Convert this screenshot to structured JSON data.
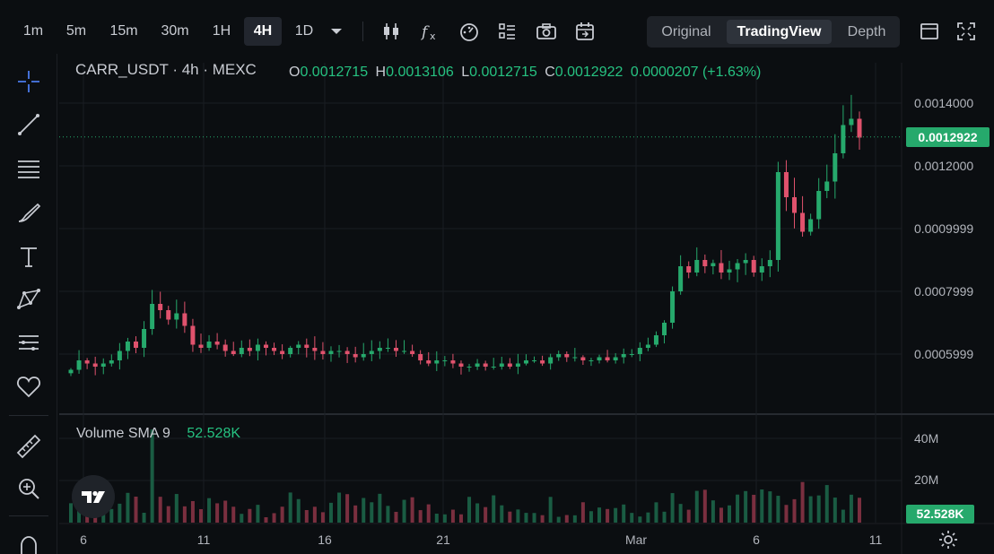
{
  "toolbar": {
    "timeframes": [
      "1m",
      "5m",
      "15m",
      "30m",
      "1H",
      "4H",
      "1D"
    ],
    "active_timeframe": "4H",
    "tool_icons": [
      "candlestick-icon",
      "function-icon",
      "gauge-icon",
      "template-icon",
      "camera-icon",
      "calendar-icon"
    ],
    "views": [
      "Original",
      "TradingView",
      "Depth"
    ],
    "active_view": "TradingView",
    "right_icons": [
      "layout-icon",
      "fullscreen-icon"
    ]
  },
  "sidebar": {
    "icons": [
      "crosshair-icon",
      "trend-line-icon",
      "horizontal-lines-icon",
      "brush-icon",
      "text-icon",
      "pattern-icon",
      "fib-icon",
      "heart-icon",
      "ruler-icon",
      "zoom-icon",
      "magnet-icon"
    ]
  },
  "legend": {
    "symbol": "CARR_USDT · 4h · MEXC",
    "o_label": "O",
    "o_value": "0.0012715",
    "h_label": "H",
    "h_value": "0.0013106",
    "l_label": "L",
    "l_value": "0.0012715",
    "c_label": "C",
    "c_value": "0.0012922",
    "change": "0.0000207 (+1.63%)"
  },
  "volume": {
    "name": "Volume SMA 9",
    "value": "52.528K",
    "axis_labels": [
      "40M",
      "20M"
    ],
    "tag": "52.528K"
  },
  "price_axis": {
    "labels": [
      "0.0014000",
      "0.0012000",
      "0.0009999",
      "0.0007999",
      "0.0005999"
    ],
    "last_price": "0.0012922"
  },
  "date_axis": [
    "6",
    "11",
    "16",
    "21",
    "Mar",
    "6",
    "11"
  ],
  "colors": {
    "up": "#26a96c",
    "down": "#e0526d",
    "background": "#0b0e11"
  },
  "chart_data": {
    "type": "candlestick",
    "interval": "4h",
    "ylim": [
      0.00052,
      0.00147
    ],
    "close_series_approx": [
      0.00055,
      0.00058,
      0.00057,
      0.00056,
      0.00057,
      0.00058,
      0.00061,
      0.00064,
      0.00062,
      0.00068,
      0.00076,
      0.00074,
      0.00071,
      0.00073,
      0.00069,
      0.00063,
      0.00062,
      0.00064,
      0.00063,
      0.00061,
      0.0006,
      0.00062,
      0.00061,
      0.00063,
      0.00062,
      0.00061,
      0.0006,
      0.00062,
      0.00063,
      0.00062,
      0.00061,
      0.0006,
      0.00061,
      0.00061,
      0.0006,
      0.00059,
      0.0006,
      0.00061,
      0.00062,
      0.00062,
      0.00061,
      0.00061,
      0.0006,
      0.00058,
      0.00057,
      0.00058,
      0.00058,
      0.00057,
      0.00056,
      0.00056,
      0.00057,
      0.00056,
      0.00056,
      0.00057,
      0.00056,
      0.00057,
      0.00058,
      0.00058,
      0.00057,
      0.00059,
      0.0006,
      0.00059,
      0.00059,
      0.00058,
      0.00058,
      0.00059,
      0.00058,
      0.00059,
      0.0006,
      0.0006,
      0.00062,
      0.00063,
      0.00066,
      0.0007,
      0.0008,
      0.00088,
      0.00086,
      0.0009,
      0.00088,
      0.00089,
      0.00086,
      0.00087,
      0.00089,
      0.0009,
      0.00086,
      0.00088,
      0.0009,
      0.00118,
      0.0011,
      0.00105,
      0.00099,
      0.00103,
      0.00112,
      0.00115,
      0.00124,
      0.00133,
      0.00135,
      0.00129
    ]
  }
}
